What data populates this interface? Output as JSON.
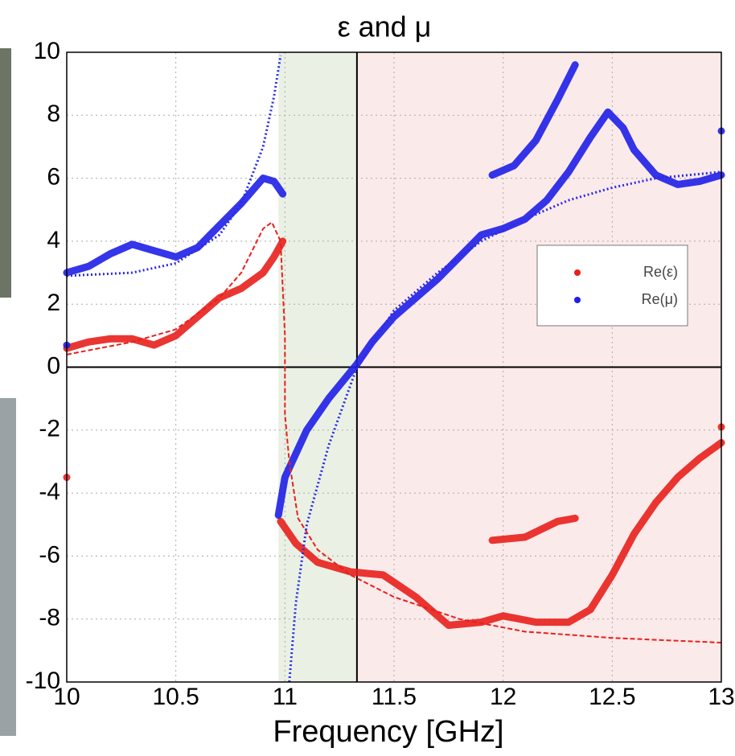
{
  "chart_data": {
    "type": "line",
    "title": "ε and μ",
    "x_label": "Frequency [GHz]",
    "xlim": [
      10,
      13
    ],
    "xticks": [
      10,
      10.5,
      11,
      11.5,
      12,
      12.5,
      13
    ],
    "ylim": [
      -10,
      10
    ],
    "yticks": [
      -10,
      -8,
      -6,
      -4,
      -2,
      0,
      2,
      4,
      6,
      8,
      10
    ],
    "grid": true,
    "legend": "right",
    "hline": 0,
    "vline": 11.33,
    "bands": [
      {
        "x": [
          10.97,
          11.33
        ],
        "color": "#eaf1e4"
      },
      {
        "x": [
          11.33,
          13
        ],
        "color": "#fbeaea"
      }
    ],
    "series": [
      {
        "name": "Re(ε)",
        "color": "#e8201c",
        "style": "measured",
        "x": [
          10.0,
          10.1,
          10.2,
          10.3,
          10.4,
          10.5,
          10.6,
          10.7,
          10.8,
          10.9,
          10.95,
          10.99,
          null,
          10.98,
          11.05,
          11.15,
          11.3,
          11.45,
          11.6,
          11.75,
          11.9,
          12.0,
          12.15,
          12.3,
          12.4,
          12.5,
          12.6,
          12.7,
          12.8,
          12.9,
          13.0,
          null,
          11.95,
          12.1,
          12.25,
          12.33,
          null,
          10.0,
          null,
          13.0
        ],
        "values": [
          0.6,
          0.8,
          0.9,
          0.9,
          0.7,
          1.0,
          1.6,
          2.2,
          2.5,
          3.0,
          3.5,
          4.0,
          null,
          -4.9,
          -5.6,
          -6.2,
          -6.5,
          -6.6,
          -7.3,
          -8.2,
          -8.1,
          -7.9,
          -8.1,
          -8.1,
          -7.7,
          -6.6,
          -5.3,
          -4.3,
          -3.5,
          -2.9,
          -2.4,
          null,
          -5.5,
          -5.4,
          -4.9,
          -4.8,
          null,
          -3.5,
          null,
          -1.9
        ]
      },
      {
        "name": "Re(μ)",
        "color": "#1f1fe8",
        "style": "measured",
        "x": [
          10.0,
          10.1,
          10.2,
          10.3,
          10.4,
          10.5,
          10.6,
          10.7,
          10.8,
          10.9,
          10.95,
          10.99,
          null,
          10.97,
          11.0,
          11.1,
          11.2,
          11.33,
          11.4,
          11.5,
          11.6,
          11.7,
          11.8,
          11.9,
          12.0,
          12.1,
          12.2,
          12.3,
          12.4,
          12.48,
          12.55,
          12.6,
          12.7,
          12.8,
          12.9,
          13.0,
          null,
          11.95,
          12.05,
          12.15,
          12.25,
          12.33,
          null,
          10.0,
          null,
          13.0
        ],
        "values": [
          3.0,
          3.2,
          3.6,
          3.9,
          3.7,
          3.5,
          3.8,
          4.5,
          5.2,
          6.0,
          5.9,
          5.5,
          null,
          -4.7,
          -3.5,
          -2.0,
          -1.0,
          0.1,
          0.8,
          1.6,
          2.2,
          2.8,
          3.5,
          4.2,
          4.4,
          4.7,
          5.3,
          6.2,
          7.3,
          8.1,
          7.6,
          6.9,
          6.1,
          5.8,
          5.9,
          6.1,
          null,
          6.1,
          6.4,
          7.2,
          8.5,
          9.6,
          null,
          0.7,
          null,
          7.5
        ]
      },
      {
        "color": "#e8201c",
        "style": "dashed",
        "x": [
          10.0,
          10.3,
          10.5,
          10.7,
          10.8,
          10.9,
          10.94,
          10.98,
          11.0,
          11.0,
          11.02,
          11.06,
          11.15,
          11.3,
          11.5,
          11.8,
          12.1,
          12.5,
          13.0
        ],
        "values": [
          0.4,
          0.8,
          1.2,
          2.2,
          3.0,
          4.4,
          4.6,
          4.0,
          1.0,
          -1.5,
          -3.0,
          -4.8,
          -5.8,
          -6.6,
          -7.3,
          -8.0,
          -8.4,
          -8.6,
          -8.75
        ]
      },
      {
        "color": "#2a2ae8",
        "style": "dotted",
        "x": [
          10.0,
          10.3,
          10.5,
          10.7,
          10.8,
          10.9,
          10.95,
          10.98,
          null,
          11.02,
          11.05,
          11.1,
          11.2,
          11.33,
          11.5,
          11.7,
          11.9,
          12.1,
          12.3,
          12.5,
          12.7,
          13.0
        ],
        "values": [
          2.9,
          3.0,
          3.3,
          4.2,
          5.2,
          7.0,
          8.6,
          9.9,
          null,
          -10,
          -7.5,
          -5.0,
          -2.5,
          0,
          1.8,
          3.0,
          4.0,
          4.7,
          5.3,
          5.7,
          6.0,
          6.2
        ]
      }
    ]
  }
}
